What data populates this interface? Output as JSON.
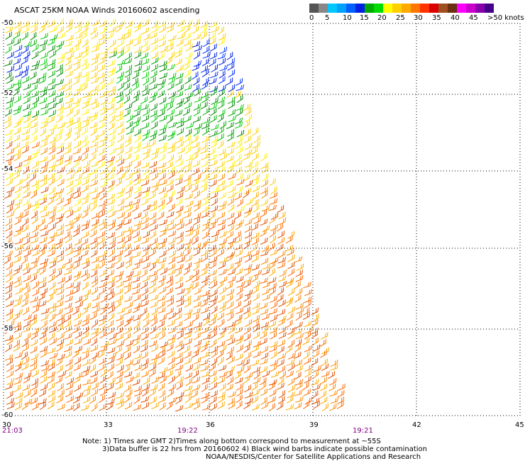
{
  "title": "ASCAT 25KM NOAA Winds 20160602 ascending",
  "colorbar": {
    "colors": [
      "#555555",
      "#888888",
      "#00c8ff",
      "#00a0ff",
      "#0060ff",
      "#0020e0",
      "#00aa00",
      "#00dd00",
      "#ffff00",
      "#ffd000",
      "#ffaa00",
      "#ff7700",
      "#ff3300",
      "#dd0000",
      "#a05020",
      "#6a3010",
      "#ff00ff",
      "#cc00cc",
      "#8800aa",
      "#440088"
    ],
    "labels": [
      "0",
      "5",
      "10",
      "15",
      "20",
      "25",
      "30",
      "35",
      "40",
      "45",
      ">50 knots"
    ]
  },
  "lat_labels": [
    "-50",
    "-52",
    "-54",
    "-56",
    "-58",
    "-60"
  ],
  "lon_labels": [
    "30",
    "33",
    "36",
    "39",
    "42",
    "45"
  ],
  "time_labels": [
    "21:03",
    "19:22",
    "19:21"
  ],
  "notes": [
    "Note: 1) Times are GMT 2)Times along bottom correspond to measurement at ~55S",
    "3)Data buffer is 22 hrs from 20160602 4) Black wind barbs indicate possible contamination",
    "NOAA/NESDIS/Center for Satellite Applications and Research"
  ],
  "swath": {
    "regions": [
      {
        "name": "green-patch-west",
        "color": "#00aa00",
        "knots": "20-25"
      },
      {
        "name": "blue-patch-east",
        "color": "#0020e0",
        "knots": "15-20"
      },
      {
        "name": "yellow-north",
        "color": "#ffd000",
        "knots": "25-30"
      },
      {
        "name": "orange-south",
        "color": "#ff8800",
        "knots": "30-35"
      }
    ]
  }
}
